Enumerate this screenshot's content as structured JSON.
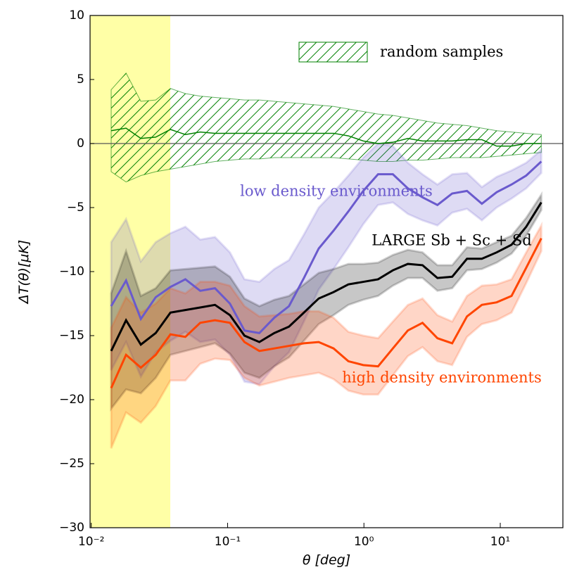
{
  "chart_data": {
    "type": "band-line",
    "x_label": "θ   [deg]",
    "y_label": "ΔT(θ)[μK]",
    "xscale": "log",
    "xlim": [
      0.0098,
      28.8
    ],
    "ylim": [
      -30,
      10
    ],
    "xticks": [
      {
        "value": 0.01,
        "label": "10⁻²"
      },
      {
        "value": 0.1,
        "label": "10⁻¹"
      },
      {
        "value": 1,
        "label": "10⁰"
      },
      {
        "value": 10,
        "label": "10¹"
      }
    ],
    "yticks": [
      {
        "value": -30,
        "label": "−30"
      },
      {
        "value": -25,
        "label": "−25"
      },
      {
        "value": -20,
        "label": "−20"
      },
      {
        "value": -15,
        "label": "−15"
      },
      {
        "value": -10,
        "label": "−10"
      },
      {
        "value": -5,
        "label": "−5"
      },
      0,
      5,
      10
    ],
    "hline": 0,
    "span": {
      "xmax": 0.038,
      "color": "#ffff00"
    },
    "legend": "upper right",
    "x": [
      0.014,
      0.018,
      0.0231,
      0.0297,
      0.0381,
      0.049,
      0.063,
      0.0808,
      0.104,
      0.133,
      0.171,
      0.22,
      0.282,
      0.363,
      0.466,
      0.599,
      0.769,
      0.989,
      1.27,
      1.63,
      2.1,
      2.69,
      3.46,
      4.44,
      5.7,
      7.33,
      9.41,
      12.1,
      15.5,
      20.0
    ],
    "series": [
      {
        "name": "random samples",
        "color": "#008000",
        "fill": "hatch",
        "label": "legend",
        "values": [
          1.0,
          1.2,
          0.4,
          0.5,
          1.1,
          0.7,
          0.9,
          0.8,
          0.8,
          0.8,
          0.8,
          0.8,
          0.8,
          0.8,
          0.8,
          0.8,
          0.6,
          0.2,
          0.0,
          0.1,
          0.4,
          0.2,
          0.2,
          0.2,
          0.3,
          0.3,
          -0.2,
          -0.2,
          0.0,
          0.0
        ],
        "lower": [
          -2.2,
          -3.0,
          -2.5,
          -2.2,
          -2.0,
          -1.8,
          -1.6,
          -1.4,
          -1.3,
          -1.2,
          -1.2,
          -1.1,
          -1.1,
          -1.1,
          -1.1,
          -1.1,
          -1.2,
          -1.3,
          -1.4,
          -1.4,
          -1.3,
          -1.3,
          -1.2,
          -1.1,
          -1.1,
          -1.1,
          -1.0,
          -0.9,
          -0.8,
          -0.7
        ],
        "upper": [
          4.2,
          5.5,
          3.3,
          3.4,
          4.3,
          3.9,
          3.7,
          3.6,
          3.5,
          3.4,
          3.4,
          3.3,
          3.2,
          3.1,
          3.0,
          2.9,
          2.7,
          2.5,
          2.3,
          2.2,
          2.0,
          1.8,
          1.6,
          1.5,
          1.4,
          1.2,
          1.0,
          0.9,
          0.8,
          0.7
        ]
      },
      {
        "name": "low density environments",
        "color": "#6a5acd",
        "fill": "solid",
        "label": "inline",
        "values": [
          -12.7,
          -10.7,
          -13.7,
          -12.0,
          -11.2,
          -10.6,
          -11.5,
          -11.3,
          -12.5,
          -14.6,
          -14.8,
          -13.6,
          -12.7,
          -10.5,
          -8.2,
          -6.8,
          -5.3,
          -3.7,
          -2.4,
          -2.4,
          -3.5,
          -4.2,
          -4.8,
          -3.9,
          -3.7,
          -4.7,
          -3.8,
          -3.2,
          -2.5,
          -1.4
        ],
        "lower": [
          -17.7,
          -15.5,
          -18.2,
          -16.3,
          -15.4,
          -14.7,
          -15.5,
          -15.3,
          -16.5,
          -18.6,
          -18.8,
          -17.4,
          -16.3,
          -13.9,
          -11.4,
          -9.8,
          -8.1,
          -6.3,
          -4.8,
          -4.6,
          -5.5,
          -6.0,
          -6.4,
          -5.4,
          -5.1,
          -6.0,
          -5.0,
          -4.3,
          -3.5,
          -2.3
        ],
        "upper": [
          -7.7,
          -5.9,
          -9.2,
          -7.7,
          -7.0,
          -6.5,
          -7.5,
          -7.3,
          -8.5,
          -10.6,
          -10.8,
          -9.8,
          -9.1,
          -7.1,
          -5.0,
          -3.8,
          -2.5,
          -1.1,
          0.0,
          -0.2,
          -1.5,
          -2.4,
          -3.2,
          -2.4,
          -2.3,
          -3.4,
          -2.6,
          -2.1,
          -1.5,
          -0.5
        ]
      },
      {
        "name": "LARGE Sb + Sc + Sd",
        "color": "#000000",
        "fill": "solid",
        "label": "inline",
        "values": [
          -16.2,
          -13.8,
          -15.7,
          -14.8,
          -13.2,
          -13.0,
          -12.8,
          -12.6,
          -13.4,
          -15.0,
          -15.5,
          -14.8,
          -14.3,
          -13.2,
          -12.1,
          -11.6,
          -11.0,
          -10.8,
          -10.6,
          -9.9,
          -9.4,
          -9.5,
          -10.5,
          -10.4,
          -9.0,
          -9.0,
          -8.5,
          -7.9,
          -6.5,
          -4.6
        ],
        "lower": [
          -20.7,
          -19.2,
          -19.5,
          -18.3,
          -16.5,
          -16.2,
          -15.9,
          -15.6,
          -16.4,
          -17.9,
          -18.3,
          -17.4,
          -16.7,
          -15.4,
          -14.1,
          -13.4,
          -12.6,
          -12.2,
          -11.9,
          -11.1,
          -10.5,
          -10.5,
          -11.5,
          -11.3,
          -9.9,
          -9.8,
          -9.3,
          -8.6,
          -7.2,
          -5.2
        ],
        "upper": [
          -11.7,
          -8.4,
          -11.9,
          -11.3,
          -9.9,
          -9.8,
          -9.7,
          -9.6,
          -10.4,
          -12.1,
          -12.7,
          -12.2,
          -11.9,
          -11.0,
          -10.1,
          -9.8,
          -9.4,
          -9.4,
          -9.3,
          -8.7,
          -8.3,
          -8.5,
          -9.5,
          -9.5,
          -8.1,
          -8.2,
          -7.7,
          -7.2,
          -5.8,
          -4.0
        ]
      },
      {
        "name": "high density environments",
        "color": "#ff4500",
        "fill": "solid",
        "label": "inline",
        "values": [
          -19.1,
          -16.5,
          -17.5,
          -16.5,
          -14.9,
          -15.1,
          -14.0,
          -13.8,
          -14.0,
          -15.5,
          -16.2,
          -16.0,
          -15.8,
          -15.6,
          -15.5,
          -16.0,
          -17.0,
          -17.3,
          -17.4,
          -16.0,
          -14.6,
          -14.0,
          -15.2,
          -15.6,
          -13.5,
          -12.6,
          -12.4,
          -11.9,
          -9.7,
          -7.4
        ],
        "lower": [
          -23.8,
          -21.0,
          -21.8,
          -20.5,
          -18.5,
          -18.5,
          -17.2,
          -16.8,
          -16.9,
          -18.3,
          -18.9,
          -18.6,
          -18.3,
          -18.1,
          -17.9,
          -18.4,
          -19.3,
          -19.6,
          -19.6,
          -18.1,
          -16.6,
          -15.9,
          -17.0,
          -17.3,
          -15.1,
          -14.1,
          -13.8,
          -13.2,
          -10.9,
          -8.4
        ],
        "upper": [
          -14.4,
          -12.0,
          -13.2,
          -12.5,
          -11.3,
          -11.7,
          -10.8,
          -10.8,
          -11.1,
          -12.7,
          -13.5,
          -13.4,
          -13.3,
          -13.1,
          -13.1,
          -13.6,
          -14.7,
          -15.0,
          -15.2,
          -13.9,
          -12.6,
          -12.1,
          -13.4,
          -13.9,
          -11.9,
          -11.1,
          -11.0,
          -10.6,
          -8.5,
          -6.4
        ]
      }
    ]
  }
}
